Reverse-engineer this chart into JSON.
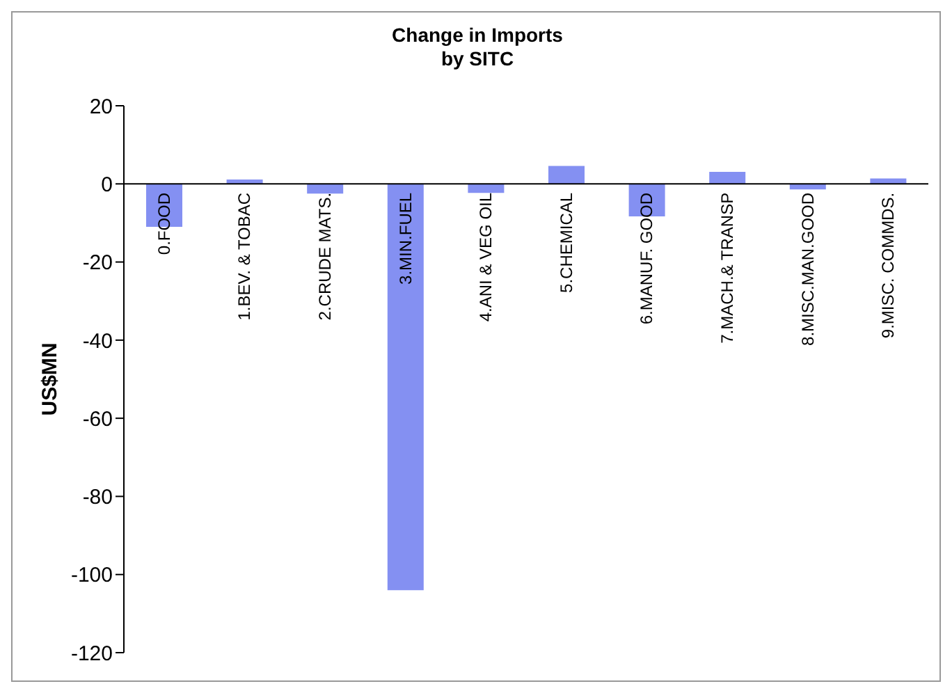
{
  "chart_data": {
    "type": "bar",
    "title": "Change in Imports\nby SITC",
    "ylabel": "US$MN",
    "categories": [
      "0.FOOD",
      "1.BEV. & TOBAC",
      "2.CRUDE MATS.",
      "3.MIN.FUEL",
      "4.ANI & VEG OIL",
      "5.CHEMICAL",
      "6.MANUF. GOOD",
      "7.MACH.& TRANSP",
      "8.MISC.MAN.GOOD",
      "9.MISC. COMMDS."
    ],
    "values": [
      -11,
      1.1,
      -2.5,
      -104,
      -2.3,
      4.6,
      -8.3,
      3.1,
      -1.4,
      1.4
    ],
    "color": "#8490f2",
    "ylim": [
      -120,
      20
    ],
    "yticks": [
      -120,
      -100,
      -80,
      -60,
      -40,
      -20,
      0,
      20
    ]
  }
}
